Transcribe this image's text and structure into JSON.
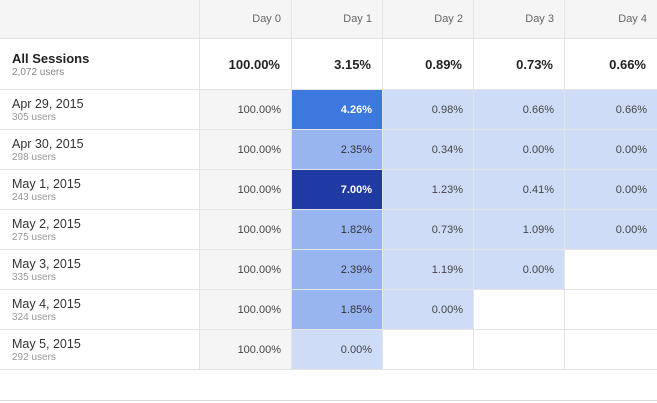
{
  "headers": [
    "Day 0",
    "Day 1",
    "Day 2",
    "Day 3",
    "Day 4"
  ],
  "total": {
    "label": "All Sessions",
    "users": "2,072 users",
    "values": [
      "100.00%",
      "3.15%",
      "0.89%",
      "0.73%",
      "0.66%"
    ]
  },
  "rows": [
    {
      "date": "Apr 29, 2015",
      "users": "305 users",
      "values": [
        "100.00%",
        "4.26%",
        "0.98%",
        "0.66%",
        "0.66%"
      ]
    },
    {
      "date": "Apr 30, 2015",
      "users": "298 users",
      "values": [
        "100.00%",
        "2.35%",
        "0.34%",
        "0.00%",
        "0.00%"
      ]
    },
    {
      "date": "May 1, 2015",
      "users": "243 users",
      "values": [
        "100.00%",
        "7.00%",
        "1.23%",
        "0.41%",
        "0.00%"
      ]
    },
    {
      "date": "May 2, 2015",
      "users": "275 users",
      "values": [
        "100.00%",
        "1.82%",
        "0.73%",
        "1.09%",
        "0.00%"
      ]
    },
    {
      "date": "May 3, 2015",
      "users": "335 users",
      "values": [
        "100.00%",
        "2.39%",
        "1.19%",
        "0.00%",
        ""
      ]
    },
    {
      "date": "May 4, 2015",
      "users": "324 users",
      "values": [
        "100.00%",
        "1.85%",
        "0.00%",
        "",
        ""
      ]
    },
    {
      "date": "May 5, 2015",
      "users": "292 users",
      "values": [
        "100.00%",
        "0.00%",
        "",
        "",
        ""
      ]
    }
  ],
  "colors": {
    "light": "#cfdcf8",
    "medium": "#99b5ef",
    "strong": "#3c78dd",
    "darkest": "#1f3aa3",
    "day0": "#f5f5f5"
  }
}
